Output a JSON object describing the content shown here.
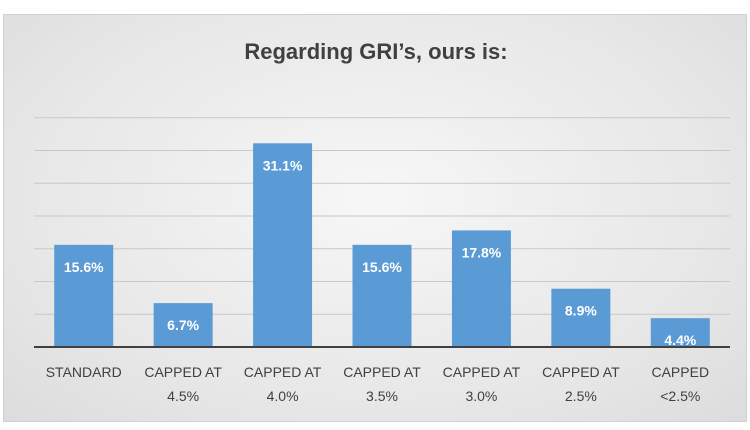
{
  "chart_data": {
    "type": "bar",
    "title": "Regarding GRI’s, ours is:",
    "categories": [
      [
        "STANDARD"
      ],
      [
        "CAPPED AT",
        "4.5%"
      ],
      [
        "CAPPED AT",
        "4.0%"
      ],
      [
        "CAPPED AT",
        "3.5%"
      ],
      [
        "CAPPED AT",
        "3.0%"
      ],
      [
        "CAPPED AT",
        "2.5%"
      ],
      [
        "CAPPED",
        "<2.5%"
      ]
    ],
    "values": [
      15.6,
      6.7,
      31.1,
      15.6,
      17.8,
      8.9,
      4.4
    ],
    "data_labels": [
      "15.6%",
      "6.7%",
      "31.1%",
      "15.6%",
      "17.8%",
      "8.9%",
      "4.4%"
    ],
    "ylim": [
      0,
      35
    ],
    "grid": true,
    "bar_color": "#5b9bd5",
    "legend": "none"
  }
}
